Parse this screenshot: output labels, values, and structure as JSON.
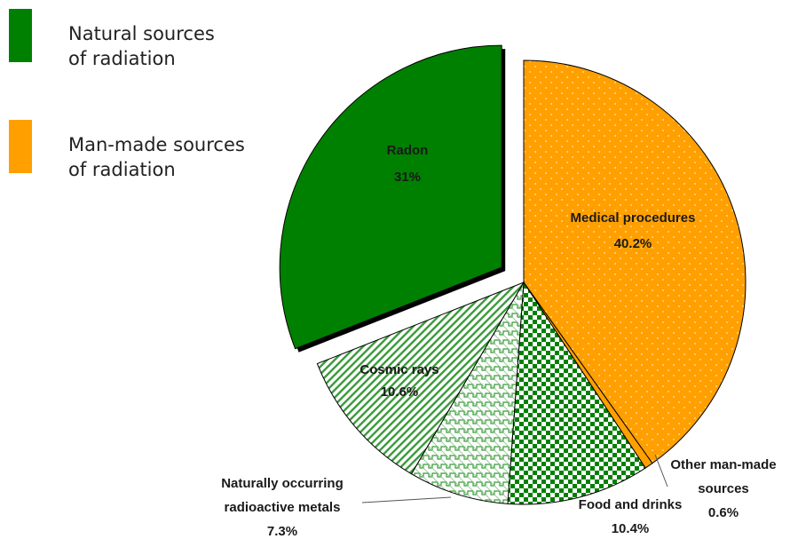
{
  "legend": {
    "items": [
      {
        "label_line1": "Natural sources",
        "label_line2": "of radiation",
        "color": "#008000"
      },
      {
        "label_line1": "Man-made sources",
        "label_line2": "of radiation",
        "color": "#ffa000"
      }
    ]
  },
  "chart_data": {
    "type": "pie",
    "title": "",
    "slices": [
      {
        "name": "Medical procedures",
        "value": 40.2,
        "value_label": "40.2%",
        "group": "man-made",
        "pattern": "dots"
      },
      {
        "name": "Other man-made sources",
        "value": 0.6,
        "value_label": "0.6%",
        "group": "man-made",
        "pattern": "solid"
      },
      {
        "name": "Food and drinks",
        "value": 10.4,
        "value_label": "10.4%",
        "group": "natural",
        "pattern": "checker"
      },
      {
        "name": "Naturally occurring radioactive metals",
        "value": 7.3,
        "value_label": "7.3%",
        "group": "natural",
        "pattern": "zigzag"
      },
      {
        "name": "Cosmic rays",
        "value": 10.6,
        "value_label": "10.6%",
        "group": "natural",
        "pattern": "diagonal"
      },
      {
        "name": "Radon",
        "value": 31,
        "value_label": "31%",
        "group": "natural",
        "pattern": "solid",
        "exploded": true
      }
    ],
    "colors": {
      "natural": "#008000",
      "man-made": "#ffa000"
    },
    "legend_placement": "top-left"
  }
}
